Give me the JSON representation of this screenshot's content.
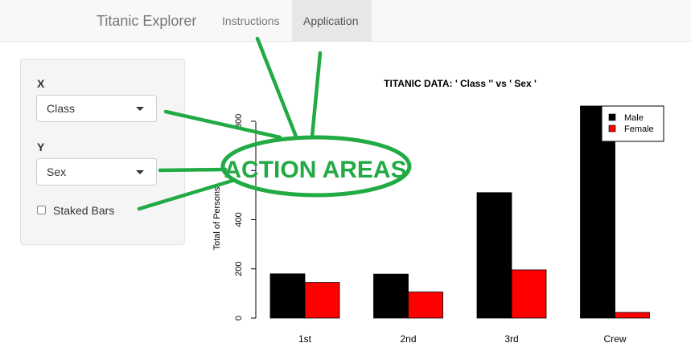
{
  "navbar": {
    "brand": "Titanic Explorer",
    "tabs": [
      {
        "label": "Instructions",
        "active": false
      },
      {
        "label": "Application",
        "active": true
      }
    ]
  },
  "sidebar": {
    "x": {
      "label": "X",
      "value": "Class"
    },
    "y": {
      "label": "Y",
      "value": "Sex"
    },
    "stacked": {
      "label": "Staked Bars",
      "checked": false
    }
  },
  "annotation": {
    "text": "ACTION AREAS",
    "color": "#22aa44"
  },
  "chart_data": {
    "type": "bar",
    "title": "TITANIC DATA: ' Class '' vs ' Sex '",
    "ylabel": "Total of Persons",
    "xlabel": "",
    "categories": [
      "1st",
      "2nd",
      "3rd",
      "Crew"
    ],
    "series": [
      {
        "name": "Male",
        "color": "#000000",
        "values": [
          180,
          179,
          510,
          862
        ]
      },
      {
        "name": "Female",
        "color": "#ff0000",
        "values": [
          145,
          106,
          196,
          23
        ]
      }
    ],
    "yticks": [
      0,
      200,
      400,
      600,
      800
    ],
    "ytick_labels": [
      "0",
      "200",
      "400",
      "",
      "800"
    ],
    "ylim": [
      0,
      862
    ],
    "grid": false,
    "legend": "top-right"
  }
}
